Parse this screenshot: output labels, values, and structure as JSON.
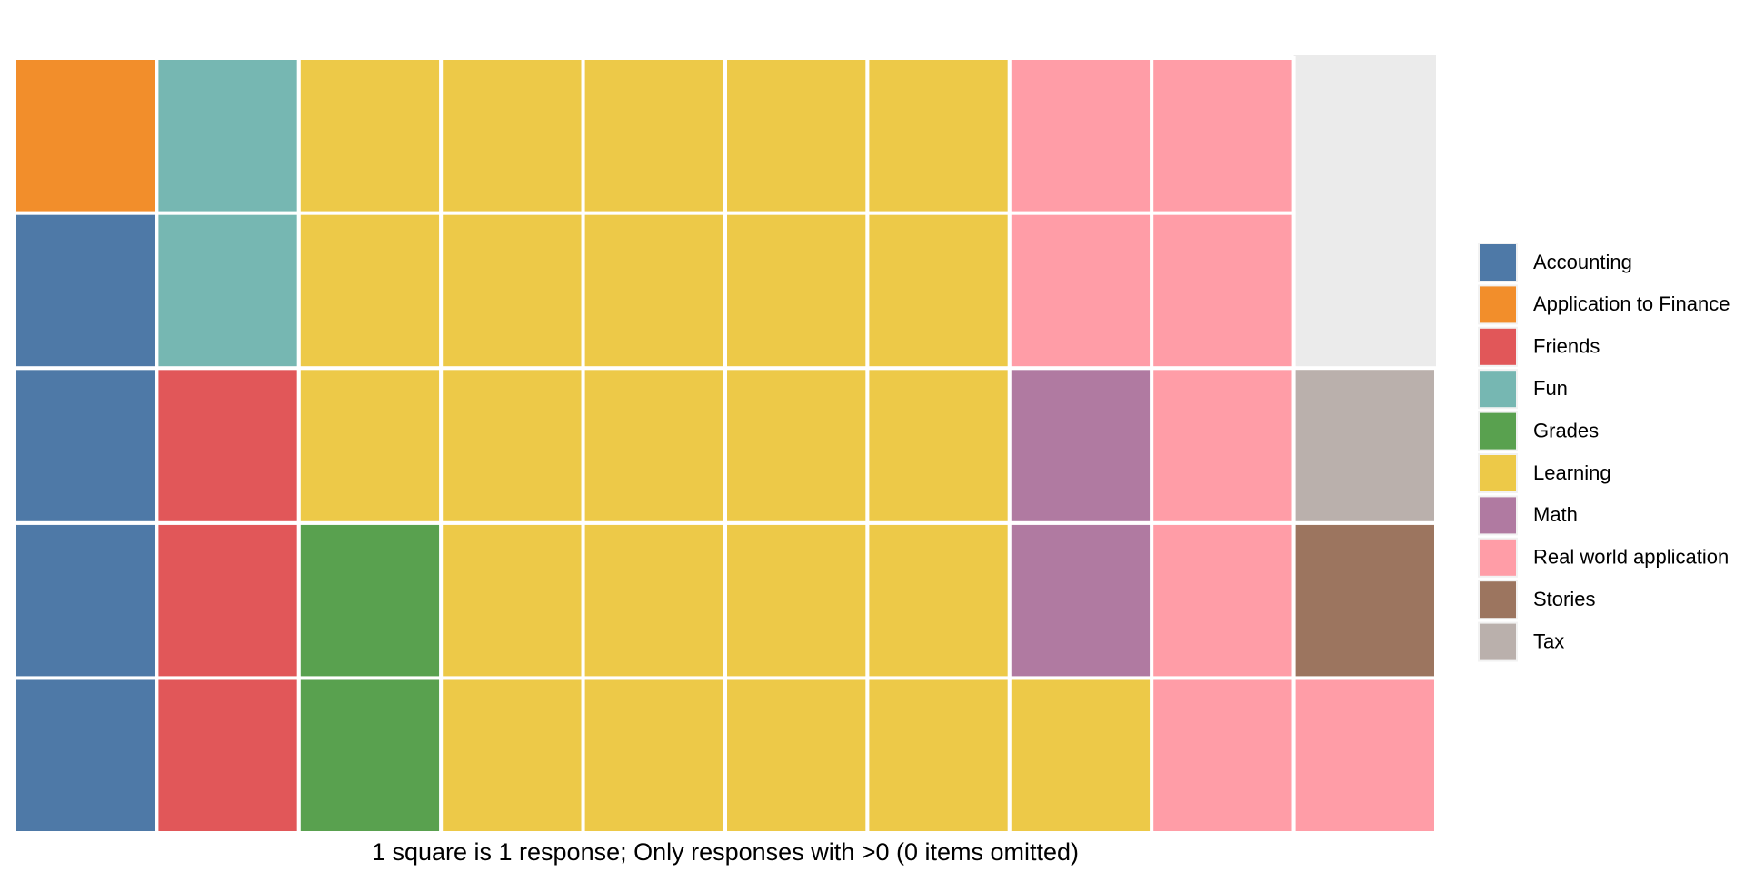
{
  "chart_data": {
    "type": "waffle",
    "categories": [
      "Accounting",
      "Application to Finance",
      "Friends",
      "Fun",
      "Grades",
      "Learning",
      "Math",
      "Real world application",
      "Stories",
      "Tax"
    ],
    "values": [
      4,
      1,
      3,
      2,
      2,
      24,
      2,
      8,
      1,
      1
    ],
    "colors": [
      "#4e79a7",
      "#f28e2b",
      "#e15759",
      "#76b7b2",
      "#59a14f",
      "#edc948",
      "#b07aa1",
      "#ff9da7",
      "#9c755f",
      "#bab0ac"
    ],
    "caption": "1 square is 1 response; Only responses with >0 (0 items omitted)"
  }
}
